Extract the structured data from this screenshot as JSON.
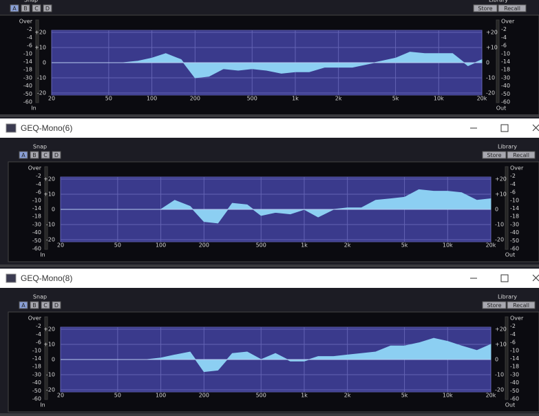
{
  "windows": [
    {
      "snap_label": "Snap",
      "snap_buttons": [
        "A",
        "B",
        "C",
        "D"
      ],
      "library_label": "Library",
      "library_buttons": [
        "Store",
        "Recall"
      ],
      "meter_scale": [
        "Over",
        "-2",
        "-4",
        "-6",
        "-10",
        "-14",
        "-18",
        "-30",
        "-40",
        "-50",
        "-60"
      ],
      "in_label": "In",
      "out_label": "Out"
    },
    {
      "title": "GEQ-Mono(6)",
      "snap_label": "Snap",
      "snap_buttons": [
        "A",
        "B",
        "C",
        "D"
      ],
      "library_label": "Library",
      "library_buttons": [
        "Store",
        "Recall"
      ],
      "meter_scale": [
        "Over",
        "-2",
        "-4",
        "-6",
        "-10",
        "-14",
        "-18",
        "-30",
        "-40",
        "-50",
        "-60"
      ],
      "in_label": "In",
      "out_label": "Out"
    },
    {
      "title": "GEQ-Mono(8)",
      "snap_label": "Snap",
      "snap_buttons": [
        "A",
        "B",
        "C",
        "D"
      ],
      "library_label": "Library",
      "library_buttons": [
        "Store",
        "Recall"
      ],
      "meter_scale": [
        "Over",
        "-2",
        "-4",
        "-6",
        "-10",
        "-14",
        "-18",
        "-30",
        "-40",
        "-50",
        "-60"
      ],
      "in_label": "In",
      "out_label": "Out"
    }
  ],
  "chart_data": [
    {
      "type": "area",
      "log_x": true,
      "grid": true,
      "xlim": [
        20,
        20000
      ],
      "ylim": [
        -20,
        20
      ],
      "xticks": [
        20,
        50,
        100,
        200,
        500,
        {
          "value": 1000,
          "label": "1k"
        },
        {
          "value": 2000,
          "label": "2k"
        },
        {
          "value": 5000,
          "label": "5k"
        },
        {
          "value": 10000,
          "label": "10k"
        },
        {
          "value": 20000,
          "label": "20k"
        }
      ],
      "yticks": [
        {
          "value": 20,
          "label": "+20"
        },
        {
          "value": 10,
          "label": "+10"
        },
        0,
        -10,
        -20
      ],
      "x": [
        20,
        25,
        31.5,
        40,
        50,
        63,
        80,
        100,
        125,
        160,
        200,
        250,
        315,
        400,
        500,
        630,
        800,
        1000,
        1250,
        1600,
        2000,
        2500,
        3150,
        4000,
        5000,
        6300,
        8000,
        10000,
        12500,
        16000,
        20000
      ],
      "series": [
        {
          "color": "#8ccff2",
          "values": [
            0,
            0,
            0,
            0,
            0,
            0,
            1,
            3,
            6,
            2,
            -10,
            -9,
            -4,
            -5,
            -4,
            -5,
            -7,
            -6,
            -6,
            -3,
            -3,
            -3,
            -1,
            1,
            3,
            7,
            6,
            6,
            6,
            -2,
            2
          ]
        }
      ]
    },
    {
      "type": "area",
      "log_x": true,
      "grid": true,
      "xlim": [
        20,
        20000
      ],
      "ylim": [
        -20,
        20
      ],
      "xticks": [
        20,
        50,
        100,
        200,
        500,
        {
          "value": 1000,
          "label": "1k"
        },
        {
          "value": 2000,
          "label": "2k"
        },
        {
          "value": 5000,
          "label": "5k"
        },
        {
          "value": 10000,
          "label": "10k"
        },
        {
          "value": 20000,
          "label": "20k"
        }
      ],
      "yticks": [
        {
          "value": 20,
          "label": "+20"
        },
        {
          "value": 10,
          "label": "+10"
        },
        0,
        -10,
        -20
      ],
      "x": [
        20,
        25,
        31.5,
        40,
        50,
        63,
        80,
        100,
        125,
        160,
        200,
        250,
        315,
        400,
        500,
        630,
        800,
        1000,
        1250,
        1600,
        2000,
        2500,
        3150,
        4000,
        5000,
        6300,
        8000,
        10000,
        12500,
        16000,
        20000
      ],
      "series": [
        {
          "color": "#8ccff2",
          "values": [
            0,
            0,
            0,
            0,
            0,
            0,
            0,
            0,
            6,
            2,
            -8,
            -9,
            4,
            3,
            -4,
            -2,
            -3,
            0,
            -5,
            0,
            1,
            1,
            6,
            7,
            8,
            13,
            12,
            12,
            11,
            6,
            7
          ]
        }
      ]
    },
    {
      "type": "area",
      "log_x": true,
      "grid": true,
      "xlim": [
        20,
        20000
      ],
      "ylim": [
        -20,
        20
      ],
      "xticks": [
        20,
        50,
        100,
        200,
        500,
        {
          "value": 1000,
          "label": "1k"
        },
        {
          "value": 2000,
          "label": "2k"
        },
        {
          "value": 5000,
          "label": "5k"
        },
        {
          "value": 10000,
          "label": "10k"
        },
        {
          "value": 20000,
          "label": "20k"
        }
      ],
      "yticks": [
        {
          "value": 20,
          "label": "+20"
        },
        {
          "value": 10,
          "label": "+10"
        },
        0,
        -10,
        -20
      ],
      "x": [
        20,
        25,
        31.5,
        40,
        50,
        63,
        80,
        100,
        125,
        160,
        200,
        250,
        315,
        400,
        500,
        630,
        800,
        1000,
        1250,
        1600,
        2000,
        2500,
        3150,
        4000,
        5000,
        6300,
        8000,
        10000,
        12500,
        16000,
        20000
      ],
      "series": [
        {
          "color": "#8ccff2",
          "values": [
            0,
            0,
            0,
            0,
            0,
            0,
            0,
            1,
            3,
            5,
            -8,
            -7,
            4,
            5,
            0,
            4,
            -1,
            -1,
            2,
            2,
            3,
            4,
            5,
            9,
            9,
            11,
            14,
            12,
            9,
            6,
            10
          ]
        }
      ]
    }
  ]
}
